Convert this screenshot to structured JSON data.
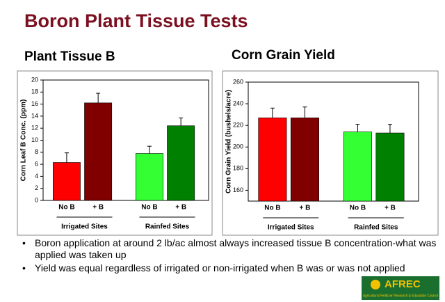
{
  "slide_title": "Boron Plant Tissue Tests",
  "chart_data": [
    {
      "type": "bar",
      "title": "Plant Tissue B",
      "y_label": "Corn Leaf B Conc. (ppm)",
      "categories": [
        "No B",
        "+ B",
        "No B",
        "+ B"
      ],
      "groups": [
        "Irrigated Sites",
        "Rainfed Sites"
      ],
      "values": [
        6.3,
        16.2,
        7.8,
        12.4
      ],
      "errors": [
        1.6,
        1.6,
        1.2,
        1.3
      ],
      "colors": [
        "#ff0000",
        "#800000",
        "#33ff33",
        "#008000"
      ],
      "ylim": [
        0,
        20
      ],
      "yticks": [
        0,
        2,
        4,
        6,
        8,
        10,
        12,
        14,
        16,
        18,
        20
      ]
    },
    {
      "type": "bar",
      "title": "Corn Grain Yield",
      "y_label": "Corn Grain Yield (bushels/acre)",
      "categories": [
        "No B",
        "+ B",
        "No B",
        "+ B"
      ],
      "groups": [
        "Irrigated Sites",
        "Rainfed Sites"
      ],
      "values": [
        227,
        227,
        214,
        213
      ],
      "errors": [
        9,
        10,
        7,
        8
      ],
      "colors": [
        "#ff0000",
        "#800000",
        "#33ff33",
        "#008000"
      ],
      "ylim": [
        150,
        260
      ],
      "yticks": [
        160,
        180,
        200,
        220,
        240,
        260
      ]
    }
  ],
  "bullets": [
    "Boron application at around 2 lb/ac almost always increased tissue B concentration-what was applied was taken up",
    "Yield was equal regardless of irrigated or non-irrigated when B was or was not applied"
  ],
  "logo": {
    "name": "AFREC",
    "caption": "Agricultural Fertilizer Research & Education Council"
  }
}
